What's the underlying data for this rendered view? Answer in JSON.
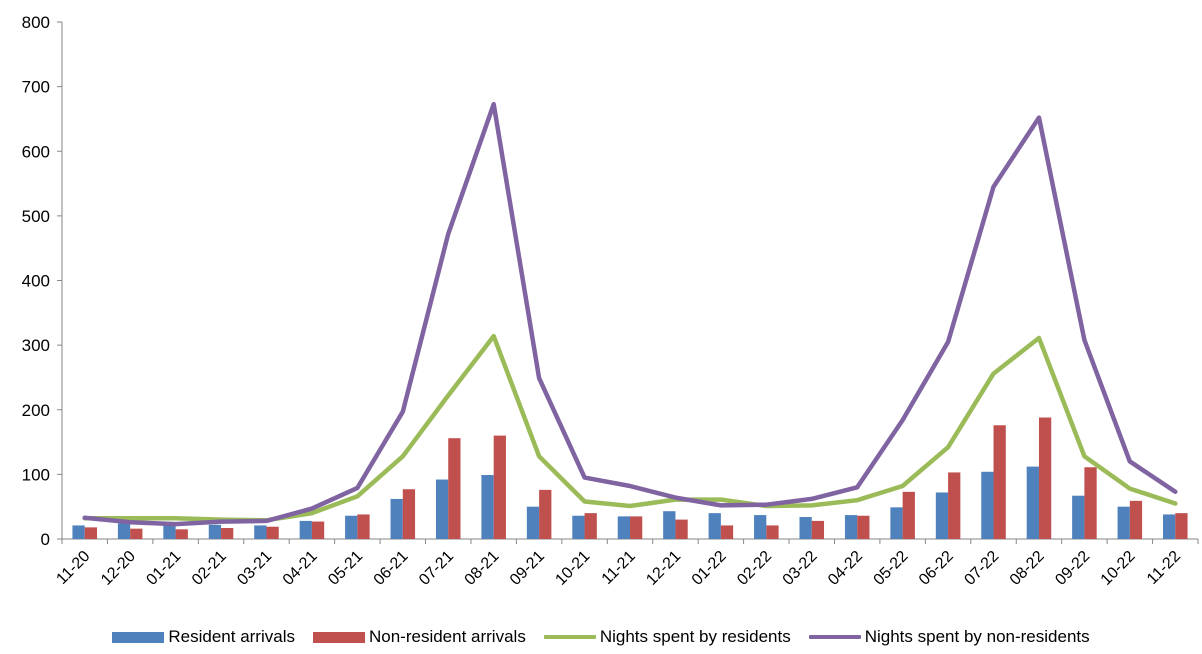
{
  "chart_data": {
    "type": "bar+line",
    "title": "",
    "xlabel": "",
    "ylabel": "",
    "ylim": [
      0,
      800
    ],
    "yticks": [
      0,
      100,
      200,
      300,
      400,
      500,
      600,
      700,
      800
    ],
    "grid": false,
    "legend_position": "bottom",
    "categories": [
      "11-20",
      "12-20",
      "01-21",
      "02-21",
      "03-21",
      "04-21",
      "05-21",
      "06-21",
      "07-21",
      "08-21",
      "09-21",
      "10-21",
      "11-21",
      "12-21",
      "01-22",
      "02-22",
      "03-22",
      "04-22",
      "05-22",
      "06-22",
      "07-22",
      "08-22",
      "09-22",
      "10-22",
      "11-22"
    ],
    "series": [
      {
        "name": "Resident arrivals",
        "kind": "bar",
        "color": "#4f81bd",
        "values": [
          21,
          24,
          22,
          22,
          21,
          28,
          36,
          62,
          92,
          99,
          50,
          36,
          35,
          43,
          40,
          37,
          34,
          37,
          49,
          72,
          104,
          112,
          67,
          50,
          38
        ]
      },
      {
        "name": "Non-resident arrivals",
        "kind": "bar",
        "color": "#c0504d",
        "values": [
          18,
          16,
          15,
          17,
          19,
          27,
          38,
          77,
          156,
          160,
          76,
          40,
          35,
          30,
          21,
          21,
          28,
          36,
          73,
          103,
          176,
          188,
          111,
          59,
          40
        ]
      },
      {
        "name": "Nights spent by residents",
        "kind": "line",
        "color": "#9bbb59",
        "values": [
          32,
          32,
          32,
          30,
          29,
          40,
          66,
          128,
          222,
          314,
          128,
          58,
          51,
          61,
          61,
          51,
          52,
          60,
          82,
          142,
          256,
          311,
          128,
          78,
          55
        ]
      },
      {
        "name": "Nights spent by non-residents",
        "kind": "line",
        "color": "#8064a2",
        "values": [
          33,
          26,
          23,
          27,
          28,
          47,
          79,
          197,
          472,
          673,
          249,
          95,
          82,
          64,
          52,
          53,
          62,
          80,
          184,
          305,
          545,
          652,
          308,
          120,
          73
        ]
      }
    ]
  }
}
